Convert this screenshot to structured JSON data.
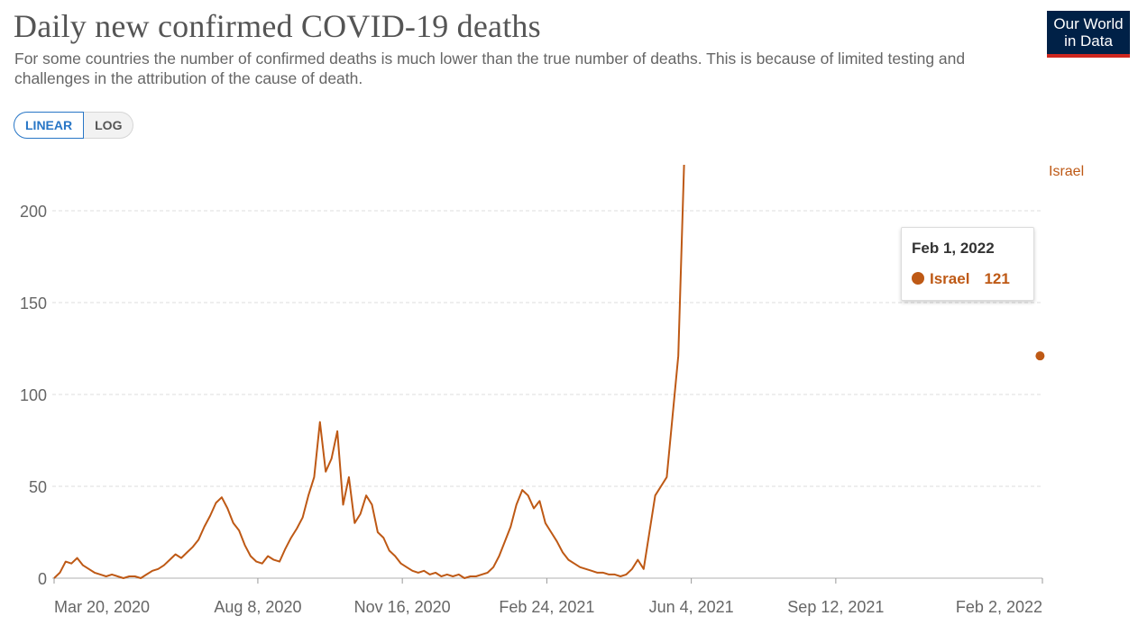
{
  "header": {
    "title": "Daily new confirmed COVID-19 deaths",
    "subtitle": "For some countries the number of confirmed deaths is much lower than the true number of deaths. This is because of limited testing and challenges in the attribution of the cause of death.",
    "logo_line1": "Our World",
    "logo_line2": "in Data"
  },
  "scale_toggle": {
    "linear_label": "LINEAR",
    "log_label": "LOG",
    "selected": "LINEAR"
  },
  "tooltip": {
    "date": "Feb 1, 2022",
    "series": "Israel",
    "value": "121"
  },
  "colors": {
    "series": "#be5915",
    "accent": "#2876c6",
    "logo_bg": "#002147",
    "logo_bar": "#ce261e"
  },
  "chart_data": {
    "type": "line",
    "title": "Daily new confirmed COVID-19 deaths",
    "xlabel": "",
    "ylabel": "",
    "ylim": [
      0,
      200
    ],
    "yticks": [
      0,
      50,
      100,
      150,
      200
    ],
    "ytick_labels": [
      "0",
      "50",
      "100",
      "150",
      "200"
    ],
    "xticks": [
      "Mar 20, 2020",
      "Aug 8, 2020",
      "Nov 16, 2020",
      "Feb 24, 2021",
      "Jun 4, 2021",
      "Sep 12, 2021",
      "Feb 2, 2022"
    ],
    "xtick_days": [
      0,
      141,
      241,
      341,
      441,
      541,
      684
    ],
    "series": [
      {
        "name": "Israel",
        "x_start": "Mar 20, 2020",
        "x_step_days": 4,
        "highlight": {
          "date": "Feb 1, 2022",
          "day": 683,
          "value": 121
        },
        "end_value": 225,
        "values": [
          0,
          3,
          9,
          8,
          11,
          7,
          5,
          3,
          2,
          1,
          2,
          1,
          0,
          1,
          1,
          0,
          2,
          4,
          5,
          7,
          10,
          13,
          11,
          14,
          17,
          21,
          28,
          34,
          41,
          44,
          38,
          30,
          26,
          18,
          12,
          9,
          8,
          12,
          10,
          9,
          16,
          22,
          27,
          33,
          45,
          55,
          85,
          58,
          65,
          80,
          40,
          55,
          30,
          35,
          45,
          40,
          25,
          22,
          15,
          12,
          8,
          6,
          4,
          3,
          4,
          2,
          3,
          1,
          2,
          1,
          2,
          0,
          1,
          1,
          2,
          3,
          6,
          12,
          20,
          28,
          40,
          48,
          45,
          38,
          42,
          30,
          25,
          20,
          14,
          10,
          8,
          6,
          5,
          4,
          3,
          3,
          2,
          2,
          1,
          2,
          5,
          10,
          5,
          25,
          45,
          50,
          55,
          88,
          121,
          225
        ]
      }
    ],
    "series_label_position": "end"
  }
}
